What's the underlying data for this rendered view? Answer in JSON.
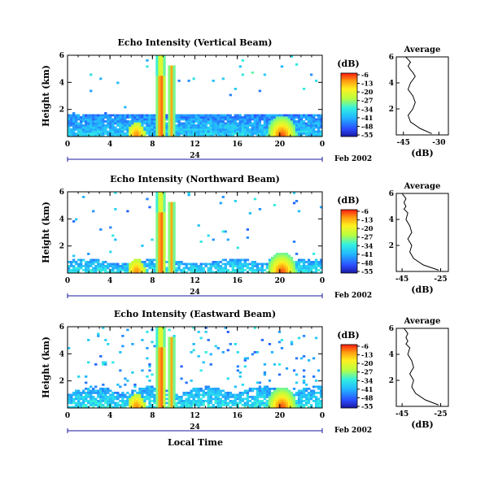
{
  "figure": {
    "xlabel": "Local Time",
    "date_label": "Feb 2002",
    "date_day": "24",
    "average_title": "Average",
    "unit_label": "(dB)",
    "ylabel": "Height (km)"
  },
  "chart_data": [
    {
      "type": "heatmap",
      "title": "Echo Intensity (Vertical Beam)",
      "xlabel": "Local Time",
      "ylabel": "Height (km)",
      "x_ticks": [
        "0",
        "4",
        "8",
        "12",
        "16",
        "20",
        "0"
      ],
      "y_ticks": [
        "2",
        "4",
        "6"
      ],
      "xlim": [
        0,
        24
      ],
      "ylim": [
        0,
        6
      ],
      "colorbar": {
        "label": "(dB)",
        "ticks": [
          "-6",
          "-13",
          "-20",
          "-27",
          "-34",
          "-41",
          "-48",
          "-55"
        ],
        "range": [
          -55,
          -6
        ]
      },
      "average_profile": {
        "title": "Average",
        "xlabel": "(dB)",
        "x_ticks": [
          "-45",
          "-30"
        ],
        "y_ticks": [
          "2",
          "4",
          "6"
        ],
        "x": [
          -33,
          -38,
          -42,
          -43,
          -41,
          -40,
          -41,
          -43,
          -42,
          -40,
          -41,
          -42,
          -43,
          -42,
          -43,
          -44
        ],
        "y": [
          0.1,
          0.5,
          1.0,
          1.5,
          2.0,
          2.5,
          3.0,
          3.5,
          4.0,
          4.5,
          4.8,
          5.0,
          5.3,
          5.6,
          5.8,
          6.0
        ]
      }
    },
    {
      "type": "heatmap",
      "title": "Echo Intensity (Northward Beam)",
      "xlabel": "Local Time",
      "ylabel": "Height (km)",
      "x_ticks": [
        "0",
        "4",
        "8",
        "12",
        "16",
        "20",
        "0"
      ],
      "y_ticks": [
        "2",
        "4",
        "6"
      ],
      "xlim": [
        0,
        24
      ],
      "ylim": [
        0,
        6
      ],
      "colorbar": {
        "label": "(dB)",
        "ticks": [
          "-6",
          "-13",
          "-20",
          "-27",
          "-34",
          "-41",
          "-48",
          "-55"
        ],
        "range": [
          -55,
          -6
        ]
      },
      "average_profile": {
        "title": "Average",
        "xlabel": "(dB)",
        "x_ticks": [
          "-45",
          "-25"
        ],
        "y_ticks": [
          "2",
          "4",
          "6"
        ],
        "x": [
          -26,
          -34,
          -39,
          -41,
          -40,
          -42,
          -40,
          -41,
          -43,
          -42,
          -44,
          -43,
          -44,
          -43,
          -44,
          -45
        ],
        "y": [
          0.1,
          0.5,
          1.0,
          1.5,
          2.0,
          2.5,
          3.0,
          3.5,
          4.0,
          4.5,
          4.8,
          5.0,
          5.3,
          5.6,
          5.8,
          6.0
        ]
      }
    },
    {
      "type": "heatmap",
      "title": "Echo Intensity (Eastward Beam)",
      "xlabel": "Local Time",
      "ylabel": "Height (km)",
      "x_ticks": [
        "0",
        "4",
        "8",
        "12",
        "16",
        "20",
        "0"
      ],
      "y_ticks": [
        "2",
        "4",
        "6"
      ],
      "xlim": [
        0,
        24
      ],
      "ylim": [
        0,
        6
      ],
      "colorbar": {
        "label": "(dB)",
        "ticks": [
          "-6",
          "-13",
          "-20",
          "-27",
          "-34",
          "-41",
          "-48",
          "-55"
        ],
        "range": [
          -55,
          -6
        ]
      },
      "average_profile": {
        "title": "Average",
        "xlabel": "(dB)",
        "x_ticks": [
          "-45",
          "-25"
        ],
        "y_ticks": [
          "2",
          "4",
          "6"
        ],
        "x": [
          -26,
          -33,
          -38,
          -40,
          -39,
          -41,
          -39,
          -40,
          -42,
          -41,
          -43,
          -42,
          -43,
          -42,
          -43,
          -44
        ],
        "y": [
          0.1,
          0.5,
          1.0,
          1.5,
          2.0,
          2.5,
          3.0,
          3.5,
          4.0,
          4.5,
          4.8,
          5.0,
          5.3,
          5.6,
          5.8,
          6.0
        ]
      }
    }
  ]
}
